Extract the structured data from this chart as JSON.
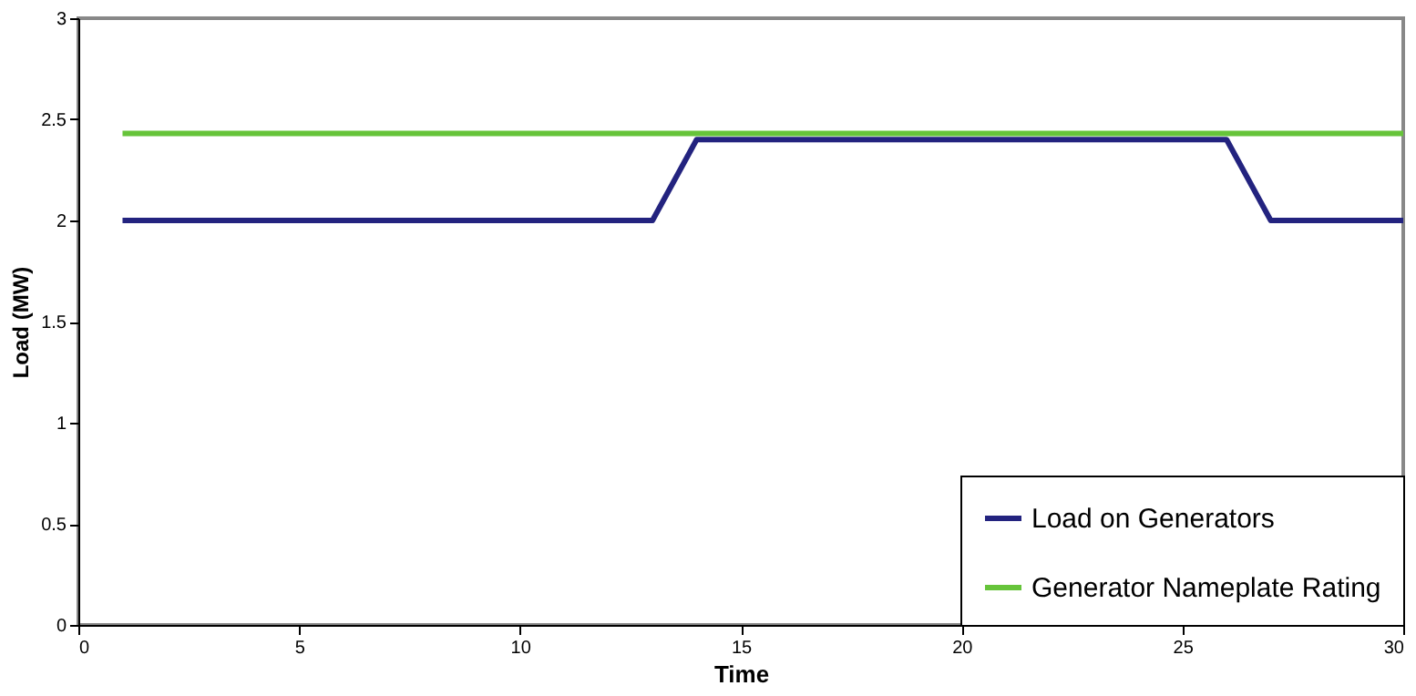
{
  "chart_data": {
    "type": "line",
    "xlabel": "Time",
    "ylabel": "Load (MW)",
    "xlim": [
      0,
      30
    ],
    "xticks": [
      0,
      5,
      10,
      15,
      20,
      25,
      30
    ],
    "ylim": [
      0,
      3
    ],
    "yticks": [
      0,
      0.5,
      1,
      1.5,
      2,
      2.5,
      3
    ],
    "series": [
      {
        "name": "Load on Generators",
        "color": "#23237f",
        "x": [
          1,
          13,
          14,
          26,
          27,
          30
        ],
        "values": [
          2,
          2,
          2.4,
          2.4,
          2,
          2
        ]
      },
      {
        "name": "Generator Nameplate Rating",
        "color": "#66c43a",
        "x": [
          1,
          30
        ],
        "values": [
          2.43,
          2.43
        ]
      }
    ],
    "grid": false,
    "legend": "bottom right",
    "marker": "none",
    "line_style": "solid"
  }
}
